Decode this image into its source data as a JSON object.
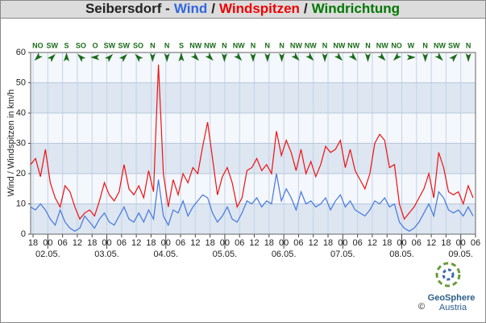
{
  "chart_data": {
    "type": "line",
    "title_parts": [
      {
        "text": "Seibersdorf -",
        "color": "#222222"
      },
      {
        "text": "Wind",
        "color": "#3366dd"
      },
      {
        "text": "/",
        "color": "#222222"
      },
      {
        "text": "Windspitzen",
        "color": "#ee0000"
      },
      {
        "text": "/",
        "color": "#222222"
      },
      {
        "text": "Windrichtung",
        "color": "#007700"
      }
    ],
    "y_label": "Wind / Windspitzen in km/h",
    "xlim": [
      0,
      181
    ],
    "ylim": [
      0,
      60
    ],
    "yticks": [
      0,
      10,
      20,
      30,
      40,
      50,
      60
    ],
    "xticks": [
      {
        "value": 1,
        "label": "18"
      },
      {
        "value": 7,
        "label": "00"
      },
      {
        "value": 13,
        "label": "06"
      },
      {
        "value": 19,
        "label": "12"
      },
      {
        "value": 25,
        "label": "18"
      },
      {
        "value": 31,
        "label": "00"
      },
      {
        "value": 37,
        "label": "06"
      },
      {
        "value": 43,
        "label": "12"
      },
      {
        "value": 49,
        "label": "18"
      },
      {
        "value": 55,
        "label": "00"
      },
      {
        "value": 61,
        "label": "06"
      },
      {
        "value": 67,
        "label": "12"
      },
      {
        "value": 73,
        "label": "18"
      },
      {
        "value": 79,
        "label": "00"
      },
      {
        "value": 85,
        "label": "06"
      },
      {
        "value": 91,
        "label": "12"
      },
      {
        "value": 97,
        "label": "18"
      },
      {
        "value": 103,
        "label": "00"
      },
      {
        "value": 109,
        "label": "06"
      },
      {
        "value": 115,
        "label": "12"
      },
      {
        "value": 121,
        "label": "18"
      },
      {
        "value": 127,
        "label": "00"
      },
      {
        "value": 133,
        "label": "06"
      },
      {
        "value": 139,
        "label": "12"
      },
      {
        "value": 145,
        "label": "18"
      },
      {
        "value": 151,
        "label": "00"
      },
      {
        "value": 157,
        "label": "06"
      },
      {
        "value": 163,
        "label": "12"
      },
      {
        "value": 169,
        "label": "18"
      },
      {
        "value": 175,
        "label": "00"
      },
      {
        "value": 181,
        "label": "06"
      }
    ],
    "day_labels": [
      {
        "value": 7,
        "label": "02.05."
      },
      {
        "value": 31,
        "label": "03.05."
      },
      {
        "value": 55,
        "label": "04.05."
      },
      {
        "value": 79,
        "label": "05.05."
      },
      {
        "value": 103,
        "label": "06.05."
      },
      {
        "value": 127,
        "label": "07.05."
      },
      {
        "value": 151,
        "label": "08.05."
      },
      {
        "value": 175,
        "label": "09.05."
      }
    ],
    "grid": true,
    "x": [
      0,
      2,
      4,
      6,
      8,
      10,
      12,
      14,
      16,
      18,
      20,
      22,
      24,
      26,
      28,
      30,
      32,
      34,
      36,
      38,
      40,
      42,
      44,
      46,
      48,
      50,
      52,
      54,
      56,
      58,
      60,
      62,
      64,
      66,
      68,
      70,
      72,
      74,
      76,
      78,
      80,
      82,
      84,
      86,
      88,
      90,
      92,
      94,
      96,
      98,
      100,
      102,
      104,
      106,
      108,
      110,
      112,
      114,
      116,
      118,
      120,
      122,
      124,
      126,
      128,
      130,
      132,
      134,
      136,
      138,
      140,
      142,
      144,
      146,
      148,
      150,
      152,
      154,
      156,
      158,
      160,
      162,
      164,
      166,
      168,
      170,
      172,
      174,
      176,
      178,
      180
    ],
    "series": [
      {
        "name": "Windspitzen",
        "color": "#ee1111",
        "values": [
          23,
          25,
          19,
          28,
          17,
          12,
          9,
          16,
          14,
          9,
          5,
          7,
          8,
          6,
          11,
          17,
          13,
          11,
          14,
          23,
          15,
          13,
          16,
          12,
          21,
          14,
          56,
          20,
          9,
          18,
          13,
          20,
          17,
          22,
          20,
          29,
          37,
          25,
          13,
          19,
          22,
          17,
          9,
          12,
          21,
          22,
          25,
          21,
          23,
          20,
          34,
          26,
          31,
          27,
          21,
          28,
          20,
          24,
          19,
          23,
          29,
          27,
          28,
          31,
          22,
          28,
          21,
          18,
          15,
          20,
          30,
          33,
          31,
          22,
          23,
          10,
          5,
          7,
          9,
          12,
          15,
          20,
          12,
          27,
          22,
          14,
          13,
          14,
          10,
          16,
          12
        ]
      },
      {
        "name": "Wind",
        "color": "#4477dd",
        "values": [
          9,
          8,
          10,
          8,
          5,
          3,
          8,
          4,
          2,
          1,
          2,
          6,
          4,
          2,
          5,
          7,
          4,
          3,
          6,
          9,
          5,
          4,
          7,
          4,
          8,
          5,
          18,
          6,
          3,
          8,
          7,
          11,
          6,
          9,
          11,
          13,
          12,
          7,
          4,
          6,
          9,
          5,
          4,
          7,
          11,
          10,
          12,
          9,
          11,
          10,
          20,
          11,
          15,
          12,
          8,
          14,
          10,
          11,
          9,
          10,
          12,
          8,
          11,
          13,
          9,
          11,
          8,
          7,
          6,
          8,
          11,
          10,
          12,
          9,
          10,
          4,
          2,
          1,
          2,
          4,
          7,
          10,
          6,
          14,
          12,
          8,
          7,
          8,
          6,
          9,
          6
        ]
      }
    ],
    "directions": {
      "name": "Windrichtung",
      "color": "#1a6b1a",
      "labels": [
        "NO",
        "SW",
        "S",
        "SO",
        "O",
        "SW",
        "SW",
        "SO",
        "N",
        "N",
        "S",
        "NW",
        "NW",
        "N",
        "NW",
        "N",
        "N",
        "N",
        "NW",
        "NW",
        "N",
        "NW",
        "NW",
        "N",
        "NW",
        "NO",
        "W",
        "N",
        "NW",
        "SW",
        "N"
      ]
    },
    "footer": {
      "brand": "GeoSphere",
      "country": "Austria",
      "copyright": "©"
    }
  }
}
